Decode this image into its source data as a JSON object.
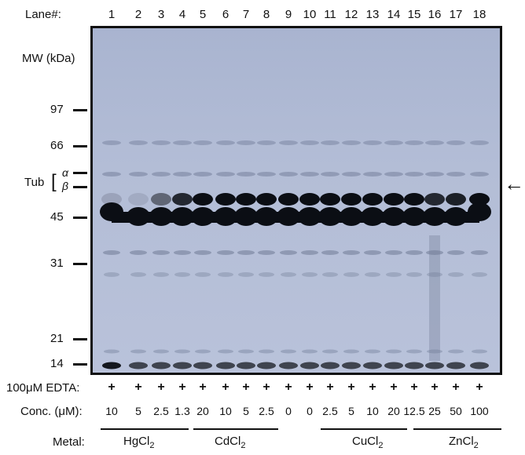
{
  "header": {
    "lane_label": "Lane#:"
  },
  "lanes": [
    "1",
    "2",
    "3",
    "4",
    "5",
    "6",
    "7",
    "8",
    "9",
    "10",
    "11",
    "12",
    "13",
    "14",
    "15",
    "16",
    "17",
    "18"
  ],
  "mw_label": "MW (kDa)",
  "markers": [
    "97",
    "66",
    "45",
    "31",
    "21",
    "14"
  ],
  "tub": {
    "label": "Tub",
    "alpha": "α",
    "beta": "β",
    "bracket": "["
  },
  "arrow": "←",
  "rows": {
    "edta_label": "100μM EDTA:",
    "edta_values": [
      "+",
      "+",
      "+",
      "+",
      "+",
      "+",
      "+",
      "+",
      "+",
      "+",
      "+",
      "+",
      "+",
      "+",
      "+",
      "+",
      "+",
      "+"
    ],
    "conc_label": "Conc. (μM):",
    "conc_values": [
      "10",
      "5",
      "2.5",
      "1.3",
      "20",
      "10",
      "5",
      "2.5",
      "0",
      "0",
      "2.5",
      "5",
      "10",
      "20",
      "12.5",
      "25",
      "50",
      "100"
    ],
    "metal_label": "Metal:"
  },
  "metals": [
    {
      "name": "HgCl",
      "sub": "2"
    },
    {
      "name": "CdCl",
      "sub": "2"
    },
    {
      "name": "CuCl",
      "sub": "2"
    },
    {
      "name": "ZnCl",
      "sub": "2"
    }
  ],
  "band_colors": {
    "dark": "#0b0e14",
    "faint": "#6f7a96",
    "gel_bg": "#b3bdd6"
  },
  "beta_band_intensity": [
    0.15,
    0.1,
    0.5,
    0.85,
    1,
    1,
    1,
    1,
    1,
    1,
    1,
    1,
    1,
    1,
    1,
    0.85,
    0.9,
    1
  ]
}
